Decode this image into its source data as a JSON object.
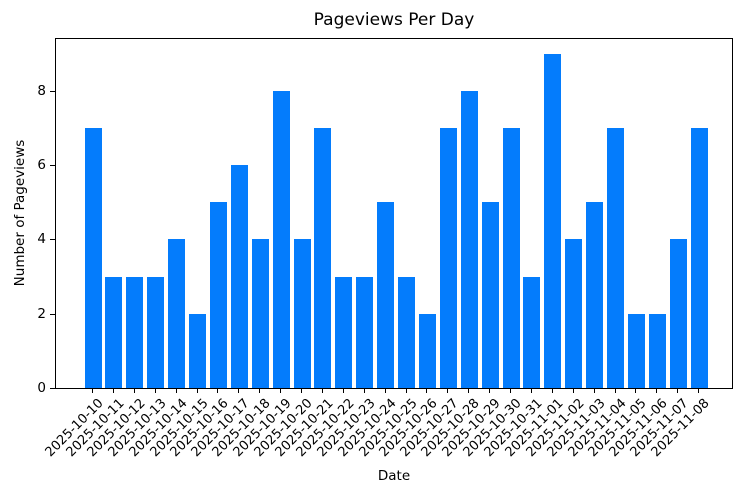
{
  "chart_data": {
    "type": "bar",
    "title": "Pageviews Per Day",
    "xlabel": "Date",
    "ylabel": "Number of Pageviews",
    "categories": [
      "2025-10-10",
      "2025-10-11",
      "2025-10-12",
      "2025-10-13",
      "2025-10-14",
      "2025-10-15",
      "2025-10-16",
      "2025-10-17",
      "2025-10-18",
      "2025-10-19",
      "2025-10-20",
      "2025-10-21",
      "2025-10-22",
      "2025-10-23",
      "2025-10-24",
      "2025-10-25",
      "2025-10-26",
      "2025-10-27",
      "2025-10-28",
      "2025-10-29",
      "2025-10-30",
      "2025-10-31",
      "2025-11-01",
      "2025-11-02",
      "2025-11-03",
      "2025-11-04",
      "2025-11-05",
      "2025-11-06",
      "2025-11-07",
      "2025-11-08"
    ],
    "values": [
      7,
      3,
      3,
      3,
      4,
      2,
      5,
      6,
      4,
      8,
      4,
      7,
      3,
      3,
      5,
      3,
      2,
      7,
      8,
      5,
      7,
      3,
      9,
      4,
      5,
      7,
      2,
      2,
      4,
      7
    ],
    "yticks": [
      0,
      2,
      4,
      6,
      8
    ],
    "ylim": [
      0,
      9.45
    ],
    "bar_color": "#047CFC",
    "grid": "off",
    "legend": "none"
  }
}
